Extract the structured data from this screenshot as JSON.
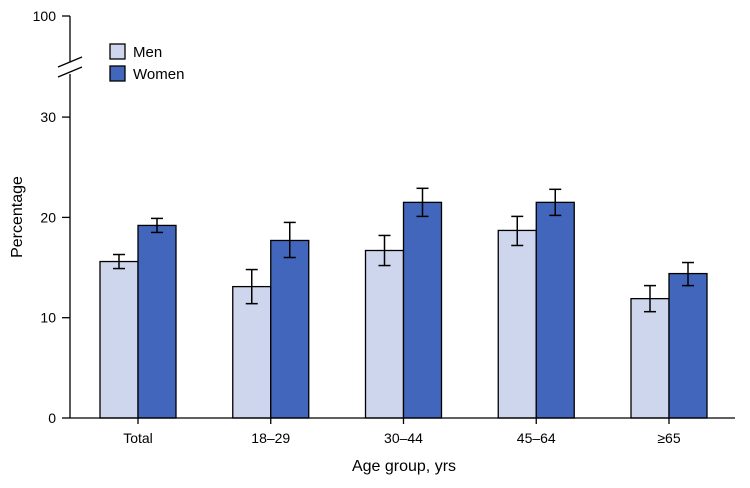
{
  "chart_data": {
    "type": "bar",
    "title": "",
    "xlabel": "Age group, yrs",
    "ylabel": "Percentage",
    "categories": [
      "Total",
      "18–29",
      "30–44",
      "45–64",
      "≥65"
    ],
    "series": [
      {
        "name": "Men",
        "color": "#cdd6ec",
        "values": [
          15.6,
          13.1,
          16.7,
          18.7,
          11.9
        ],
        "ci_low": [
          14.9,
          11.4,
          15.2,
          17.2,
          10.6
        ],
        "ci_high": [
          16.3,
          14.8,
          18.2,
          20.1,
          13.2
        ]
      },
      {
        "name": "Women",
        "color": "#4166bc",
        "values": [
          19.2,
          17.7,
          21.5,
          21.5,
          14.4
        ],
        "ci_low": [
          18.5,
          16.0,
          20.1,
          20.2,
          13.2
        ],
        "ci_high": [
          19.9,
          19.5,
          22.9,
          22.8,
          15.5
        ]
      }
    ],
    "y_ticks": [
      0,
      10,
      20,
      30,
      100
    ],
    "y_tick_labels": [
      "0",
      "10",
      "20",
      "30",
      "100"
    ],
    "ylim": [
      0,
      100
    ],
    "y_axis_break": true,
    "y_axis_break_between": [
      30,
      100
    ],
    "legend_position": "top-left",
    "grid": false
  }
}
